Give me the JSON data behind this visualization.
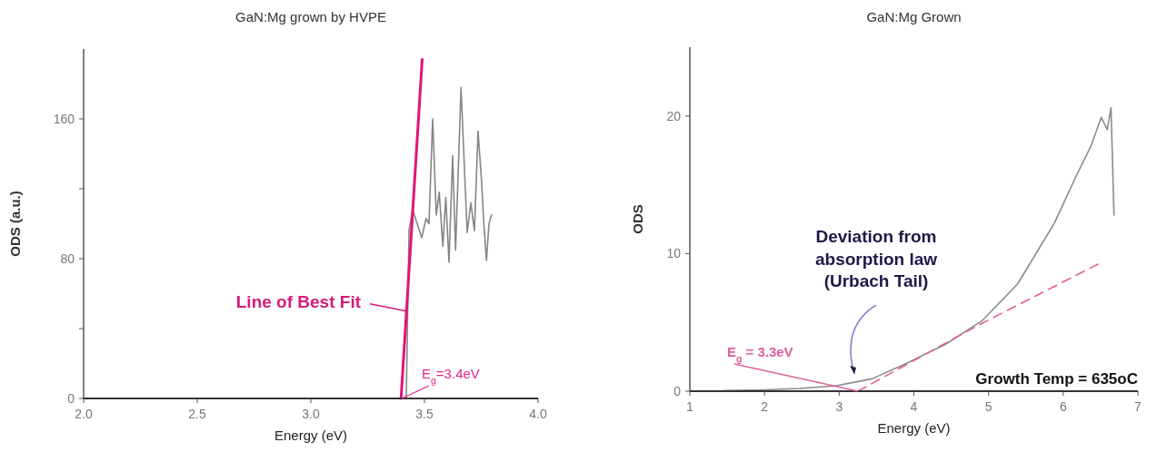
{
  "chart_data": [
    {
      "type": "line",
      "title": "GaN:Mg grown by HVPE",
      "xlabel": "Energy (eV)",
      "ylabel": "ODS (a.u.)",
      "xlim": [
        2,
        4
      ],
      "xticks": [
        {
          "value": 2,
          "label": "2.0"
        },
        {
          "value": 2.5,
          "label": "2.5"
        },
        {
          "value": 3,
          "label": "3.0"
        },
        {
          "value": 3.5,
          "label": "3.5"
        },
        {
          "value": 4,
          "label": "4.0"
        }
      ],
      "ylim": [
        0,
        200
      ],
      "yticks": [
        0,
        {
          "value": 40,
          "label": null
        },
        80,
        {
          "value": 120,
          "label": null
        },
        160
      ],
      "series": [
        {
          "color": "#8a8484",
          "x": [
            2,
            2.5,
            3,
            3.3,
            3.42,
            3.432,
            3.448,
            3.488,
            3.507,
            3.52,
            3.536,
            3.552,
            3.565,
            3.581,
            3.594,
            3.608,
            3.624,
            3.637,
            3.661,
            3.688,
            3.704,
            3.72,
            3.736,
            3.752,
            3.76,
            3.773,
            3.784,
            3.795
          ],
          "values": [
            0,
            0,
            0,
            0,
            0,
            96,
            108,
            92,
            103,
            100,
            160,
            105,
            118,
            87,
            115,
            78,
            139,
            85,
            178,
            95,
            112,
            96,
            153,
            123,
            103,
            79,
            100,
            105
          ]
        },
        {
          "type": "line",
          "color": "#e0147a",
          "x": [
            3.397,
            3.49
          ],
          "values": [
            0,
            194
          ]
        }
      ],
      "annotations": [
        {
          "text": "Line of Best Fit",
          "x": 3.42,
          "y": 50
        },
        {
          "text": "E$_{g}$=3.4eV",
          "x": 3.4,
          "y": 0
        }
      ]
    },
    {
      "type": "line",
      "title": "GaN:Mg Grown",
      "xlabel": "Energy (eV)",
      "ylabel": "ODS",
      "xlim": [
        1,
        7
      ],
      "xticks": [
        1,
        2,
        3,
        4,
        5,
        6,
        7
      ],
      "ylim": [
        0,
        25
      ],
      "yticks": [
        0,
        10,
        20
      ],
      "series": [
        {
          "color": "#8a8a8a",
          "x": [
            1.3,
            1.5,
            2,
            2.47,
            2.96,
            3.44,
            3.93,
            4.42,
            4.91,
            5.39,
            5.88,
            6.17,
            6.37,
            6.51,
            6.59,
            6.64,
            6.68
          ],
          "values": [
            0,
            0.05,
            0.1,
            0.2,
            0.4,
            0.9,
            2.1,
            3.4,
            5.1,
            7.8,
            12.2,
            15.6,
            17.8,
            19.9,
            19,
            20.6,
            12.8
          ]
        },
        {
          "type": "line",
          "color": "#e0609a",
          "line_style": "dashed",
          "x": [
            3.25,
            4.9,
            6.49
          ],
          "values": [
            0,
            4.9,
            9.3
          ]
        }
      ],
      "annotations": [
        {
          "text": "E$_{g}$ = 3.3eV",
          "x": 3.25,
          "y": 0
        },
        "Deviation from\nabsorption law\n(Urbach Tail)",
        "Growth Temp = 635oC"
      ]
    }
  ]
}
